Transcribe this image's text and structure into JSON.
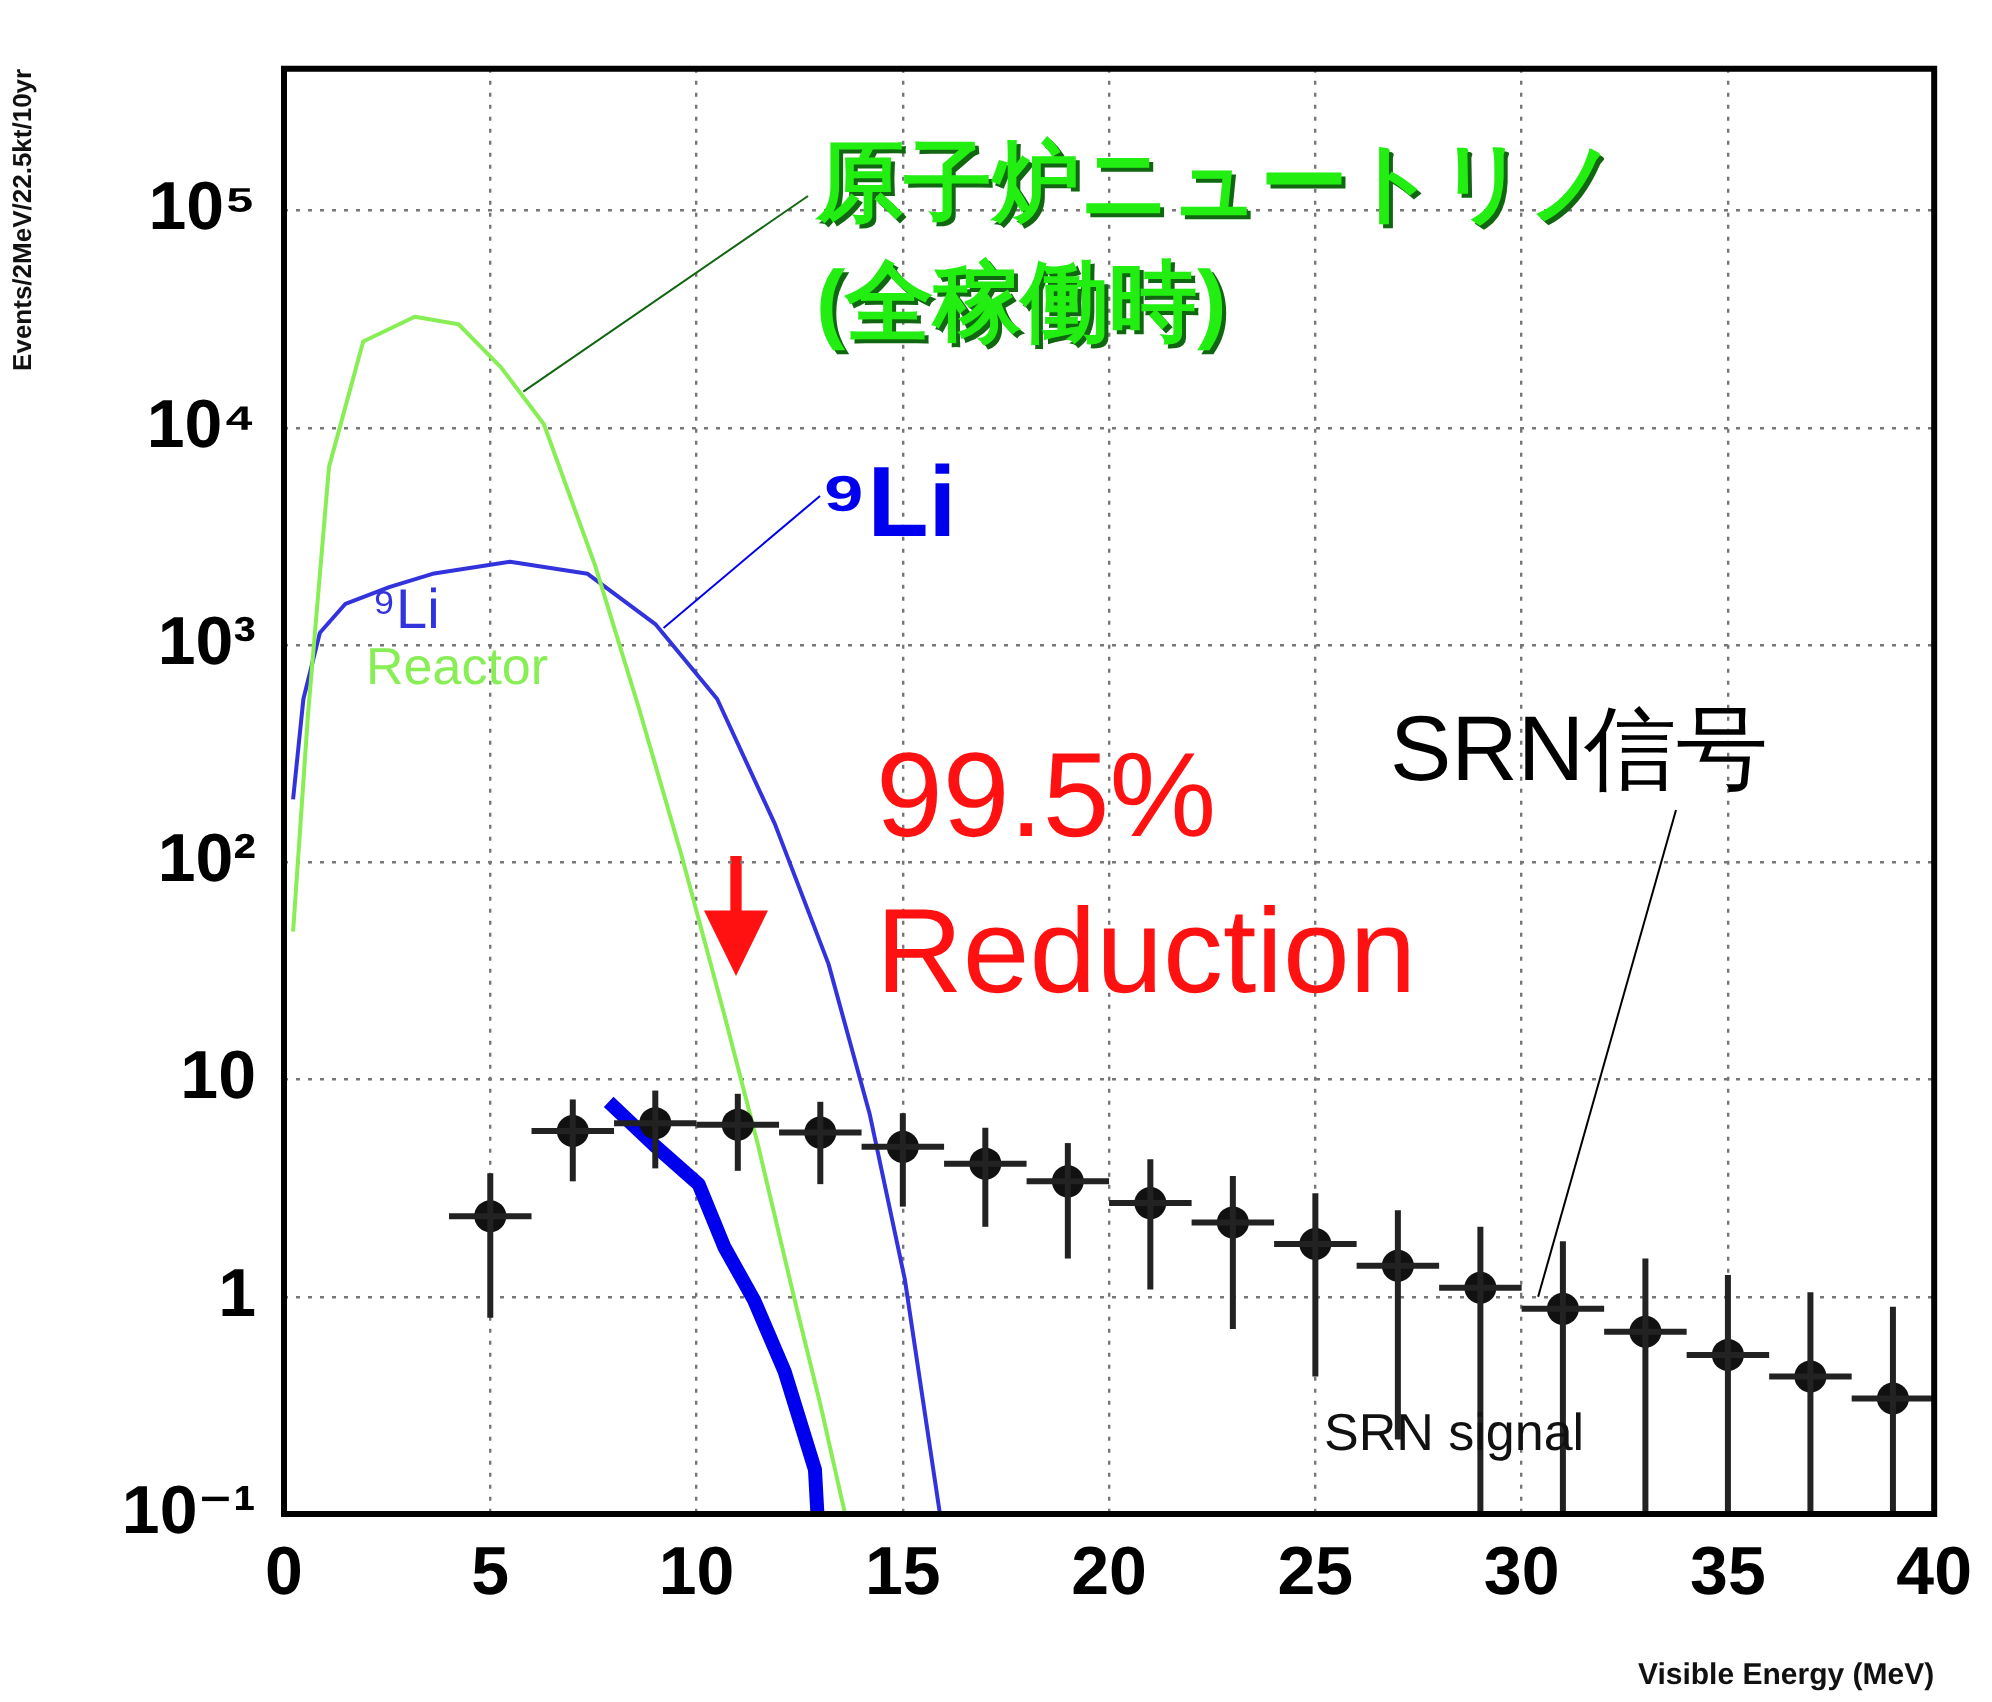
{
  "chart_data": {
    "type": "line",
    "xlabel": "Visible Energy (MeV)",
    "ylabel": "Events/2MeV/22.5kt/10yr",
    "xlim": [
      0,
      40
    ],
    "xticks": [
      0,
      5,
      10,
      15,
      20,
      25,
      30,
      35,
      40
    ],
    "ylim": [
      0.1,
      450000
    ],
    "yticks": [
      {
        "value": 0.1,
        "label": "10⁻¹"
      },
      1,
      10,
      {
        "value": 100,
        "label": "10²"
      },
      {
        "value": 1000,
        "label": "10³"
      },
      {
        "value": 10000,
        "label": "10⁴"
      },
      {
        "value": 100000,
        "label": "10⁵"
      }
    ],
    "log": "y",
    "grid": true,
    "legend": false,
    "line_style": "solid",
    "series": [
      {
        "name": "Reactor",
        "type": "line",
        "marker": "none",
        "color": "#88ee55",
        "x": [
          0.22,
          0.58,
          1.09,
          1.92,
          3.17,
          4.23,
          5.26,
          6.3,
          7.55,
          8.6,
          9.64,
          10.67,
          11.5,
          12.36,
          13.0,
          13.6
        ],
        "values": [
          48,
          475,
          6600,
          25000,
          32500,
          30000,
          19000,
          10400,
          2300,
          515,
          107,
          20,
          4.9,
          1,
          0.32,
          0.1
        ]
      },
      {
        "name": "⁹Li",
        "type": "line",
        "marker": "none",
        "color": "#3333dd",
        "x": [
          0.22,
          0.47,
          0.87,
          1.49,
          2.55,
          3.6,
          5.48,
          7.36,
          9.0,
          10.5,
          11.9,
          13.2,
          14.2,
          15.05,
          15.9
        ],
        "values": [
          195,
          565,
          1140,
          1550,
          1850,
          2130,
          2420,
          2130,
          1250,
          565,
          150,
          34,
          6.9,
          1.2,
          0.1
        ]
      },
      {
        "type": "line",
        "marker": "none",
        "color": "#0000ee",
        "x": [
          7.87,
          9.02,
          10.05,
          10.67,
          11.4,
          12.14,
          12.87,
          12.93
        ],
        "values": [
          7.9,
          4.9,
          3.3,
          1.7,
          0.96,
          0.45,
          0.16,
          0.1
        ]
      },
      {
        "name": "SRN signal",
        "type": "scatter",
        "marker": "circle",
        "color": "#111111",
        "x": [
          5,
          7,
          9,
          11,
          13,
          15,
          17,
          19,
          21,
          23,
          25,
          27,
          29,
          31,
          33,
          35,
          37,
          39
        ],
        "values": [
          2.35,
          5.8,
          6.3,
          6.2,
          5.7,
          4.9,
          4.1,
          3.4,
          2.7,
          2.2,
          1.75,
          1.39,
          1.1,
          0.88,
          0.69,
          0.54,
          0.43,
          0.34
        ],
        "errors": [
          [
            0.8,
            3.7
          ],
          [
            3.4,
            8.1
          ],
          [
            3.9,
            8.9
          ],
          [
            3.8,
            8.6
          ],
          [
            3.3,
            7.9
          ],
          [
            2.6,
            7.0
          ],
          [
            2.1,
            6.0
          ],
          [
            1.5,
            5.1
          ],
          [
            1.08,
            4.3
          ],
          [
            0.71,
            3.6
          ],
          [
            0.43,
            3.0
          ],
          [
            0.22,
            2.5
          ],
          [
            0.1,
            2.1
          ],
          [
            0.1,
            1.8
          ],
          [
            0.1,
            1.5
          ],
          [
            0.1,
            1.26
          ],
          [
            0.1,
            1.05
          ],
          [
            0.1,
            0.9
          ]
        ],
        "xerrors": [
          1,
          1,
          1,
          1,
          1,
          1,
          1,
          1,
          1,
          1,
          1,
          1,
          1,
          1,
          1,
          1,
          1,
          1
        ]
      }
    ],
    "annotations": [
      {
        "text": "原子炉ニュートリノ\n(全稼働時)",
        "x": 5.8,
        "y": 14700
      },
      {
        "text": "⁹Li",
        "x": 9.2,
        "y": 1200
      },
      {
        "text": "SRN信号",
        "x": 30.4,
        "y": 1.0
      },
      "99.5%\nReduction"
    ]
  }
}
